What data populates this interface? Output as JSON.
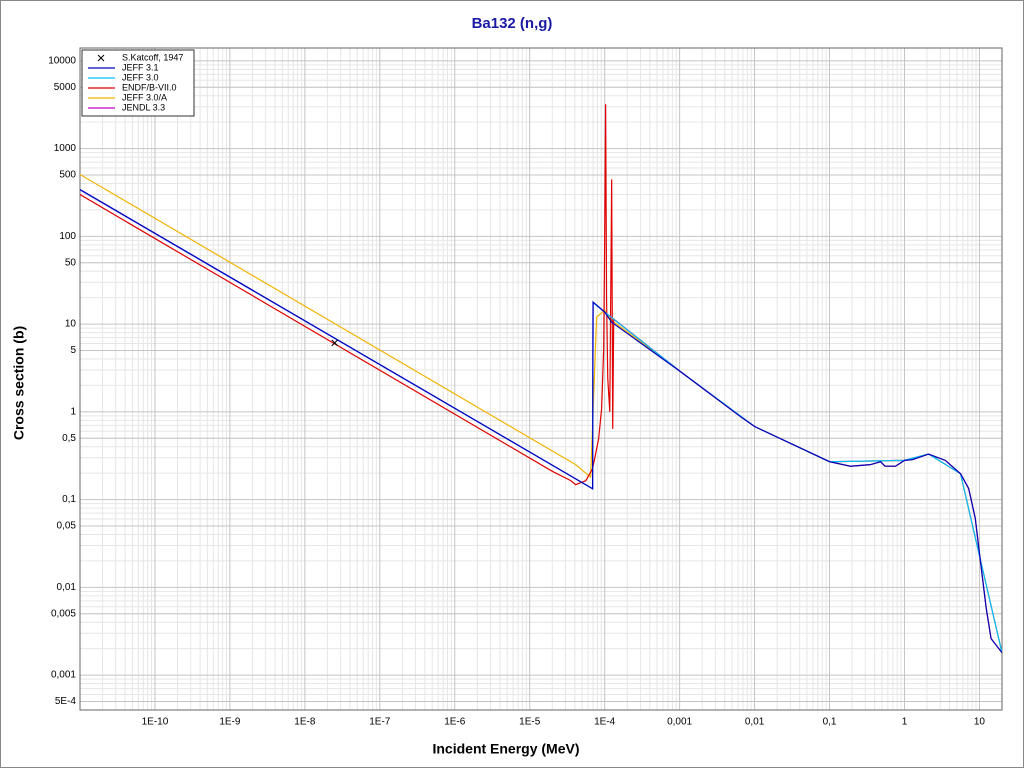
{
  "chart_data": {
    "type": "line",
    "title": "Ba132 (n,g)",
    "x_label": "Incident Energy (MeV)",
    "y_label": "Cross section (b)",
    "xscale": "log",
    "yscale": "log",
    "grid": true,
    "minor_grid": true,
    "legend": "upper left",
    "xlim": [
      1e-11,
      20
    ],
    "ylim": [
      0.0004,
      14000
    ],
    "xticks": [
      {
        "value": 1e-10,
        "label": "1E-10"
      },
      {
        "value": 1e-09,
        "label": "1E-9"
      },
      {
        "value": 1e-08,
        "label": "1E-8"
      },
      {
        "value": 1e-07,
        "label": "1E-7"
      },
      {
        "value": 1e-06,
        "label": "1E-6"
      },
      {
        "value": 1e-05,
        "label": "1E-5"
      },
      {
        "value": 0.0001,
        "label": "1E-4"
      },
      {
        "value": 0.001,
        "label": "0,001"
      },
      {
        "value": 0.01,
        "label": "0,01"
      },
      {
        "value": 0.1,
        "label": "0,1"
      },
      1,
      10
    ],
    "yticks": [
      10000,
      5000,
      1000,
      500,
      100,
      50,
      10,
      5,
      1,
      {
        "value": 0.5,
        "label": "0,5"
      },
      {
        "value": 0.1,
        "label": "0,1"
      },
      {
        "value": 0.05,
        "label": "0,05"
      },
      {
        "value": 0.01,
        "label": "0,01"
      },
      {
        "value": 0.005,
        "label": "0,005"
      },
      {
        "value": 0.001,
        "label": "0,001"
      },
      {
        "value": 0.0005,
        "label": "5E-4"
      }
    ],
    "series": [
      {
        "name": "S.Katcoff, 1947",
        "color": "#000000",
        "marker": "x",
        "x": [
          2.5e-08
        ],
        "values": [
          6.1
        ]
      },
      {
        "name": "JEFF 3.1",
        "color": "#0000c0",
        "x": [
          1e-11,
          6.9e-05,
          7e-05,
          0.0001,
          0.000124,
          0.001,
          0.0065,
          0.01,
          0.1,
          0.19,
          0.35,
          0.48,
          0.55,
          0.76,
          1,
          1.27,
          2.1,
          3.5,
          5.6,
          7.2,
          8.8,
          10.2,
          12.3,
          14.3,
          20
        ],
        "values": [
          342,
          0.133,
          17.8,
          13.7,
          10.5,
          2.92,
          0.88,
          0.68,
          0.27,
          0.24,
          0.25,
          0.27,
          0.24,
          0.24,
          0.28,
          0.285,
          0.33,
          0.28,
          0.197,
          0.133,
          0.061,
          0.0214,
          0.0058,
          0.0026,
          0.0018
        ]
      },
      {
        "name": "JEFF 3.0",
        "color": "#00c0ff",
        "x": [
          1e-11,
          6.9e-05,
          7e-05,
          0.0001,
          0.001,
          0.01,
          0.1,
          1,
          2.1,
          5.6,
          10.2,
          20
        ],
        "values": [
          340,
          0.133,
          17.5,
          13.7,
          2.92,
          0.68,
          0.27,
          0.28,
          0.33,
          0.197,
          0.0214,
          0.0018
        ]
      },
      {
        "name": "ENDF/B-VII.0",
        "color": "#e00000",
        "x": [
          1e-11,
          2e-05,
          3.5e-05,
          4.1e-05,
          5.6e-05,
          6.9e-05,
          8.3e-05,
          9.1e-05,
          9.7e-05,
          0.0001,
          0.000103,
          0.000106,
          0.00011,
          0.000117,
          0.000124,
          0.000128,
          0.000132,
          0.001,
          0.0065,
          0.01,
          0.1,
          0.19,
          0.35,
          0.48,
          0.55,
          0.76,
          1,
          1.27,
          2.1,
          3.5,
          5.6,
          7.2,
          8.8,
          10.2,
          12.3,
          14.3,
          20
        ],
        "values": [
          299,
          0.21,
          0.165,
          0.148,
          0.164,
          0.225,
          0.49,
          1.08,
          5.2,
          92,
          3200,
          19,
          2.4,
          1,
          445,
          0.64,
          11.4,
          2.92,
          0.88,
          0.68,
          0.27,
          0.24,
          0.25,
          0.27,
          0.24,
          0.24,
          0.28,
          0.285,
          0.33,
          0.28,
          0.197,
          0.133,
          0.061,
          0.0214,
          0.0058,
          0.0026,
          0.0018
        ]
      },
      {
        "name": "JEFF 3.0/A",
        "color": "#f0b400",
        "x": [
          1e-11,
          4.1e-05,
          6.5e-05,
          7.8e-05,
          0.0001,
          0.000124,
          0.001,
          0.01,
          0.1,
          1,
          2.1,
          5.6,
          10.2,
          20
        ],
        "values": [
          507,
          0.25,
          0.18,
          12,
          14.4,
          11,
          2.92,
          0.68,
          0.27,
          0.28,
          0.33,
          0.197,
          0.0214,
          0.0018
        ]
      },
      {
        "name": "JENDL 3.3",
        "color": "#c000c0",
        "x": [
          1e-11,
          6.9e-05,
          7e-05,
          0.0001,
          0.001,
          0.01,
          0.1,
          1,
          2.1,
          5.6,
          10.2,
          20
        ],
        "values": [
          338,
          0.133,
          17.6,
          13.7,
          2.92,
          0.68,
          0.27,
          0.28,
          0.33,
          0.197,
          0.0214,
          0.0018
        ]
      }
    ]
  }
}
